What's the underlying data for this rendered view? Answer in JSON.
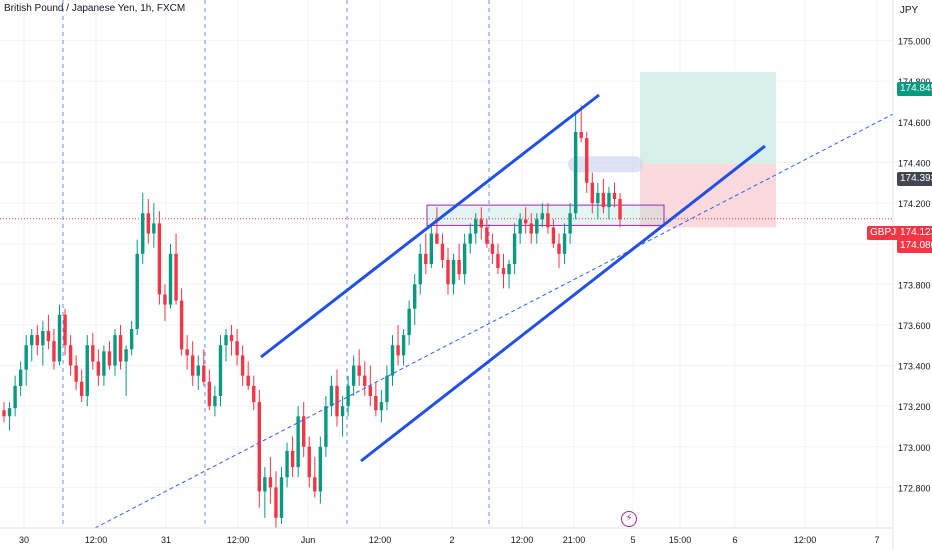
{
  "title": "British Pound / Japanese Yen, 1h, FXCM",
  "colors": {
    "bull": "#089981",
    "bear": "#f23645",
    "channel": "#2250e6",
    "trend": "#2962ff",
    "session_line": "#2962ff",
    "zone_fill": "#b2dfdb",
    "zone_border": "#9c27b0",
    "tp_fill": "#d6efe8",
    "sl_fill": "#fbd9dc",
    "grid": "#f0f3fa"
  },
  "chart_data": {
    "type": "candlestick",
    "ylabel": "JPY",
    "ylim": [
      172.6,
      175.2
    ],
    "y_ticks": [
      "175.000",
      "174.800",
      "174.600",
      "174.400",
      "174.200",
      "174.000",
      "173.800",
      "173.600",
      "173.400",
      "173.200",
      "173.000",
      "172.800"
    ],
    "x_ticks": [
      "30",
      "12:00",
      "31",
      "12:00",
      "Jun",
      "12:00",
      "2",
      "12:00",
      "21:00",
      "5",
      "15:00",
      "6",
      "12:00",
      "7"
    ],
    "symbol": "GBPJPY",
    "last_price": "174.123",
    "price_labels": {
      "take_profit": "174.845",
      "entry": "174.393",
      "stop": "174.080"
    },
    "candles": [
      [
        173.18,
        173.22,
        173.12,
        173.15
      ],
      [
        173.15,
        173.22,
        173.08,
        173.19
      ],
      [
        173.19,
        173.35,
        173.15,
        173.3
      ],
      [
        173.3,
        173.42,
        173.25,
        173.38
      ],
      [
        173.38,
        173.55,
        173.3,
        173.5
      ],
      [
        173.5,
        173.58,
        173.42,
        173.55
      ],
      [
        173.55,
        173.6,
        173.45,
        173.5
      ],
      [
        173.5,
        173.62,
        173.4,
        173.57
      ],
      [
        173.57,
        173.65,
        173.48,
        173.52
      ],
      [
        173.52,
        173.58,
        173.38,
        173.42
      ],
      [
        173.42,
        173.7,
        173.4,
        173.65
      ],
      [
        173.65,
        173.68,
        173.45,
        173.5
      ],
      [
        173.5,
        173.55,
        173.35,
        173.4
      ],
      [
        173.4,
        173.45,
        173.28,
        173.32
      ],
      [
        173.32,
        173.38,
        173.22,
        173.25
      ],
      [
        173.25,
        173.55,
        173.2,
        173.5
      ],
      [
        173.5,
        173.56,
        173.38,
        173.42
      ],
      [
        173.42,
        173.48,
        173.3,
        173.35
      ],
      [
        173.35,
        173.5,
        173.3,
        173.47
      ],
      [
        173.47,
        173.52,
        173.38,
        173.4
      ],
      [
        173.4,
        173.58,
        173.35,
        173.55
      ],
      [
        173.55,
        173.6,
        173.38,
        173.42
      ],
      [
        173.42,
        173.5,
        173.25,
        173.48
      ],
      [
        173.48,
        173.62,
        173.45,
        173.58
      ],
      [
        173.58,
        174.02,
        173.55,
        173.95
      ],
      [
        173.95,
        174.25,
        173.9,
        174.15
      ],
      [
        174.15,
        174.22,
        174.0,
        174.05
      ],
      [
        174.05,
        174.2,
        173.98,
        174.1
      ],
      [
        174.1,
        174.16,
        173.7,
        173.75
      ],
      [
        173.75,
        173.8,
        173.62,
        173.7
      ],
      [
        173.7,
        174.0,
        173.68,
        173.95
      ],
      [
        173.95,
        174.05,
        173.7,
        173.72
      ],
      [
        173.72,
        173.78,
        173.45,
        173.48
      ],
      [
        173.48,
        173.55,
        173.38,
        173.45
      ],
      [
        173.45,
        173.52,
        173.3,
        173.35
      ],
      [
        173.35,
        173.45,
        173.28,
        173.4
      ],
      [
        173.4,
        173.48,
        173.3,
        173.32
      ],
      [
        173.32,
        173.38,
        173.18,
        173.2
      ],
      [
        173.2,
        173.3,
        173.15,
        173.25
      ],
      [
        173.25,
        173.55,
        173.2,
        173.5
      ],
      [
        173.5,
        173.58,
        173.42,
        173.55
      ],
      [
        173.55,
        173.6,
        173.45,
        173.52
      ],
      [
        173.52,
        173.58,
        173.4,
        173.45
      ],
      [
        173.45,
        173.5,
        173.3,
        173.35
      ],
      [
        173.35,
        173.42,
        173.28,
        173.3
      ],
      [
        173.3,
        173.35,
        173.18,
        173.22
      ],
      [
        173.22,
        173.28,
        172.7,
        172.78
      ],
      [
        172.78,
        172.9,
        172.65,
        172.85
      ],
      [
        172.85,
        172.95,
        172.72,
        172.8
      ],
      [
        172.8,
        172.88,
        172.6,
        172.65
      ],
      [
        172.65,
        172.9,
        172.62,
        172.85
      ],
      [
        172.85,
        173.02,
        172.8,
        172.98
      ],
      [
        172.98,
        173.05,
        172.85,
        172.9
      ],
      [
        172.9,
        173.2,
        172.85,
        173.15
      ],
      [
        173.15,
        173.22,
        172.95,
        173.0
      ],
      [
        173.0,
        173.05,
        172.8,
        172.85
      ],
      [
        172.85,
        172.95,
        172.75,
        172.78
      ],
      [
        172.78,
        173.05,
        172.72,
        173.0
      ],
      [
        173.0,
        173.25,
        172.95,
        173.2
      ],
      [
        173.2,
        173.35,
        173.15,
        173.3
      ],
      [
        173.3,
        173.38,
        173.1,
        173.15
      ],
      [
        173.15,
        173.25,
        173.05,
        173.2
      ],
      [
        173.2,
        173.35,
        173.15,
        173.3
      ],
      [
        173.3,
        173.45,
        173.25,
        173.4
      ],
      [
        173.4,
        173.48,
        173.3,
        173.35
      ],
      [
        173.35,
        173.42,
        173.25,
        173.3
      ],
      [
        173.3,
        173.4,
        173.2,
        173.25
      ],
      [
        173.25,
        173.32,
        173.15,
        173.18
      ],
      [
        173.18,
        173.28,
        173.12,
        173.22
      ],
      [
        173.22,
        173.4,
        173.18,
        173.35
      ],
      [
        173.35,
        173.55,
        173.3,
        173.5
      ],
      [
        173.5,
        173.6,
        173.4,
        173.45
      ],
      [
        173.45,
        173.58,
        173.4,
        173.55
      ],
      [
        173.55,
        173.72,
        173.5,
        173.68
      ],
      [
        173.68,
        173.85,
        173.6,
        173.8
      ],
      [
        173.8,
        174.0,
        173.75,
        173.95
      ],
      [
        173.95,
        174.05,
        173.85,
        173.9
      ],
      [
        173.9,
        174.1,
        173.88,
        174.05
      ],
      [
        174.05,
        174.18,
        174.0,
        174.0
      ],
      [
        174.0,
        174.05,
        173.88,
        173.92
      ],
      [
        173.92,
        173.98,
        173.75,
        173.8
      ],
      [
        173.8,
        173.95,
        173.75,
        173.92
      ],
      [
        173.92,
        174.0,
        173.82,
        173.85
      ],
      [
        173.85,
        174.05,
        173.8,
        174.0
      ],
      [
        174.0,
        174.1,
        173.95,
        174.05
      ],
      [
        174.05,
        174.15,
        174.0,
        174.12
      ],
      [
        174.12,
        174.18,
        174.02,
        174.08
      ],
      [
        174.08,
        174.12,
        173.98,
        174.0
      ],
      [
        174.0,
        174.05,
        173.9,
        173.95
      ],
      [
        173.95,
        174.0,
        173.85,
        173.88
      ],
      [
        173.88,
        173.95,
        173.78,
        173.85
      ],
      [
        173.85,
        173.92,
        173.78,
        173.9
      ],
      [
        173.9,
        174.1,
        173.85,
        174.05
      ],
      [
        174.05,
        174.15,
        174.0,
        174.12
      ],
      [
        174.12,
        174.18,
        174.05,
        174.1
      ],
      [
        174.1,
        174.15,
        174.0,
        174.05
      ],
      [
        174.05,
        174.15,
        174.0,
        174.12
      ],
      [
        174.12,
        174.2,
        174.08,
        174.15
      ],
      [
        174.15,
        174.2,
        174.05,
        174.08
      ],
      [
        174.08,
        174.12,
        173.98,
        174.0
      ],
      [
        174.0,
        174.05,
        173.88,
        173.95
      ],
      [
        173.95,
        174.1,
        173.9,
        174.05
      ],
      [
        174.05,
        174.2,
        174.0,
        174.15
      ],
      [
        174.15,
        174.65,
        174.12,
        174.55
      ],
      [
        174.55,
        174.68,
        174.5,
        174.52
      ],
      [
        174.52,
        174.55,
        174.25,
        174.3
      ],
      [
        174.3,
        174.35,
        174.15,
        174.2
      ],
      [
        174.2,
        174.3,
        174.12,
        174.25
      ],
      [
        174.25,
        174.32,
        174.15,
        174.18
      ],
      [
        174.18,
        174.28,
        174.12,
        174.25
      ],
      [
        174.25,
        174.3,
        174.18,
        174.22
      ],
      [
        174.22,
        174.25,
        174.08,
        174.12
      ]
    ]
  }
}
